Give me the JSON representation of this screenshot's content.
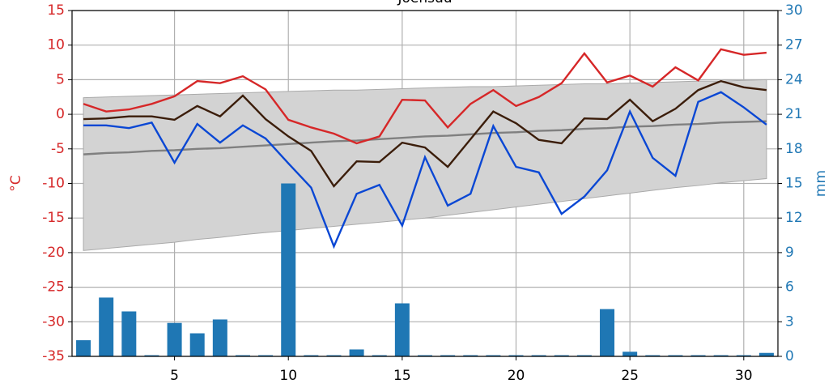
{
  "chart_data": {
    "type": "line",
    "title": "Joensuu",
    "y_label": "°C",
    "y2_label": "mm",
    "x": [
      1,
      2,
      3,
      4,
      5,
      6,
      7,
      8,
      9,
      10,
      11,
      12,
      13,
      14,
      15,
      16,
      17,
      18,
      19,
      20,
      21,
      22,
      23,
      24,
      25,
      26,
      27,
      28,
      29,
      30,
      31
    ],
    "xlim": [
      0.5,
      31.5
    ],
    "xticks": [
      5,
      10,
      15,
      20,
      25,
      30
    ],
    "ylim": [
      -35,
      15
    ],
    "yticks": [
      -35,
      -30,
      -25,
      -20,
      -15,
      -10,
      -5,
      0,
      5,
      10,
      15
    ],
    "y2lim": [
      0,
      30
    ],
    "y2ticks": [
      0,
      3,
      6,
      9,
      12,
      15,
      18,
      21,
      24,
      27,
      30
    ],
    "grid": true,
    "y_color": "#d62728",
    "y2_color": "#1f77b4",
    "series": [
      {
        "type": "band",
        "color": "#d3d3d3",
        "upper": [
          2.4,
          2.5,
          2.6,
          2.7,
          2.8,
          2.9,
          3.0,
          3.1,
          3.2,
          3.3,
          3.4,
          3.5,
          3.5,
          3.6,
          3.7,
          3.8,
          3.9,
          4.0,
          4.0,
          4.1,
          4.2,
          4.3,
          4.4,
          4.4,
          4.5,
          4.6,
          4.7,
          4.8,
          4.8,
          4.9,
          5.0
        ],
        "lower": [
          -19.7,
          -19.4,
          -19.1,
          -18.8,
          -18.5,
          -18.1,
          -17.8,
          -17.4,
          -17.1,
          -16.8,
          -16.5,
          -16.2,
          -15.9,
          -15.6,
          -15.3,
          -15.0,
          -14.6,
          -14.2,
          -13.8,
          -13.4,
          -13.0,
          -12.6,
          -12.2,
          -11.8,
          -11.4,
          -11.0,
          -10.6,
          -10.3,
          -9.9,
          -9.6,
          -9.3
        ]
      },
      {
        "type": "bar",
        "axis": "y2",
        "color": "#1f77b4",
        "values": [
          1.4,
          5.1,
          3.9,
          0.1,
          2.9,
          2.0,
          3.2,
          0.1,
          0.1,
          15.0,
          0.1,
          0.1,
          0.6,
          0.1,
          4.6,
          0.1,
          0.1,
          0.1,
          0.1,
          0.1,
          0.1,
          0.1,
          0.1,
          4.1,
          0.4,
          0.1,
          0.1,
          0.1,
          0.1,
          0.1,
          0.3
        ]
      },
      {
        "type": "line",
        "color": "#808080",
        "values": [
          -5.8,
          -5.6,
          -5.5,
          -5.3,
          -5.2,
          -5.0,
          -4.9,
          -4.7,
          -4.5,
          -4.3,
          -4.1,
          -3.9,
          -3.8,
          -3.6,
          -3.4,
          -3.2,
          -3.1,
          -2.9,
          -2.7,
          -2.6,
          -2.4,
          -2.3,
          -2.1,
          -2.0,
          -1.8,
          -1.7,
          -1.5,
          -1.4,
          -1.2,
          -1.1,
          -1.0
        ]
      },
      {
        "type": "line",
        "color": "#d62728",
        "values": [
          1.5,
          0.4,
          0.7,
          1.5,
          2.6,
          4.8,
          4.5,
          5.5,
          3.6,
          -0.8,
          -1.9,
          -2.8,
          -4.2,
          -3.2,
          2.1,
          2.0,
          -1.9,
          1.5,
          3.5,
          1.2,
          2.5,
          4.5,
          8.8,
          4.6,
          5.6,
          4.0,
          6.8,
          4.9,
          9.4,
          8.6,
          8.9
        ]
      },
      {
        "type": "line",
        "color": "#3b1d0a",
        "values": [
          -0.7,
          -0.6,
          -0.3,
          -0.3,
          -0.8,
          1.2,
          -0.3,
          2.7,
          -0.7,
          -3.2,
          -5.3,
          -10.4,
          -6.8,
          -6.9,
          -4.1,
          -4.8,
          -7.6,
          -3.6,
          0.4,
          -1.3,
          -3.7,
          -4.2,
          -0.6,
          -0.7,
          2.1,
          -1.0,
          0.8,
          3.5,
          4.8,
          3.9,
          3.5
        ]
      },
      {
        "type": "line",
        "color": "#0a47d4",
        "values": [
          -1.6,
          -1.6,
          -2.0,
          -1.2,
          -7.0,
          -1.4,
          -4.1,
          -1.6,
          -3.5,
          -7.1,
          -10.6,
          -19.1,
          -11.5,
          -10.2,
          -16.1,
          -6.2,
          -13.2,
          -11.5,
          -1.7,
          -7.6,
          -8.4,
          -14.4,
          -11.9,
          -8.1,
          0.4,
          -6.3,
          -8.9,
          1.8,
          3.2,
          1.0,
          -1.5
        ]
      }
    ]
  }
}
